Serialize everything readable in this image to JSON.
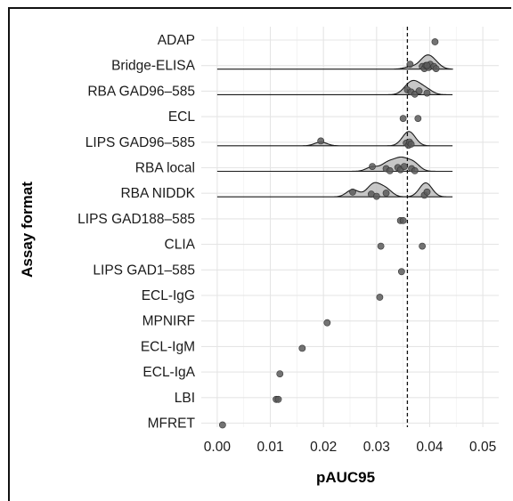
{
  "chart_data": {
    "type": "scatter",
    "subtype": "ridgeline-with-points",
    "xlabel": "pAUC95",
    "ylabel": "Assay format",
    "xlim": [
      -0.003,
      0.053
    ],
    "xticks": [
      0.0,
      0.01,
      0.02,
      0.03,
      0.04,
      0.05
    ],
    "xtick_labels": [
      "0.00",
      "0.01",
      "0.02",
      "0.03",
      "0.04",
      "0.05"
    ],
    "reference_line": {
      "x": 0.0358,
      "style": "dashed"
    },
    "grid": true,
    "colors": {
      "points": "#5a5a5a",
      "density_fill": "#bdbdbd",
      "grid": "#e5e5e5"
    },
    "categories": [
      {
        "name": "ADAP",
        "points": [
          0.041
        ],
        "density": false
      },
      {
        "name": "Bridge-ELISA",
        "points": [
          0.0363,
          0.0386,
          0.039,
          0.0393,
          0.0398,
          0.0401,
          0.0408,
          0.0412,
          0.0395
        ],
        "density": true
      },
      {
        "name": "RBA GAD96–585",
        "points": [
          0.0358,
          0.0365,
          0.0372,
          0.038,
          0.0395
        ],
        "density": true
      },
      {
        "name": "ECL",
        "points": [
          0.035,
          0.0378
        ],
        "density": false
      },
      {
        "name": "LIPS GAD96–585",
        "points": [
          0.0195,
          0.0356,
          0.036,
          0.0362,
          0.0365
        ],
        "density": true
      },
      {
        "name": "RBA local",
        "points": [
          0.0292,
          0.0318,
          0.0325,
          0.034,
          0.0345,
          0.0352,
          0.0366,
          0.0372
        ],
        "density": true
      },
      {
        "name": "RBA NIDDK",
        "points": [
          0.0255,
          0.029,
          0.03,
          0.0318,
          0.039,
          0.0395
        ],
        "density": true
      },
      {
        "name": "LIPS GAD188–585",
        "points": [
          0.0345,
          0.035
        ],
        "density": false
      },
      {
        "name": "CLIA",
        "points": [
          0.0308,
          0.0386
        ],
        "density": false
      },
      {
        "name": "LIPS GAD1–585",
        "points": [
          0.0347
        ],
        "density": false
      },
      {
        "name": "ECL-IgG",
        "points": [
          0.0306
        ],
        "density": false
      },
      {
        "name": "MPNIRF",
        "points": [
          0.0207
        ],
        "density": false
      },
      {
        "name": "ECL-IgM",
        "points": [
          0.016
        ],
        "density": false
      },
      {
        "name": "ECL-IgA",
        "points": [
          0.0118
        ],
        "density": false
      },
      {
        "name": "LBI",
        "points": [
          0.0111,
          0.0115
        ],
        "density": false
      },
      {
        "name": "MFRET",
        "points": [
          0.001
        ],
        "density": false
      }
    ]
  }
}
